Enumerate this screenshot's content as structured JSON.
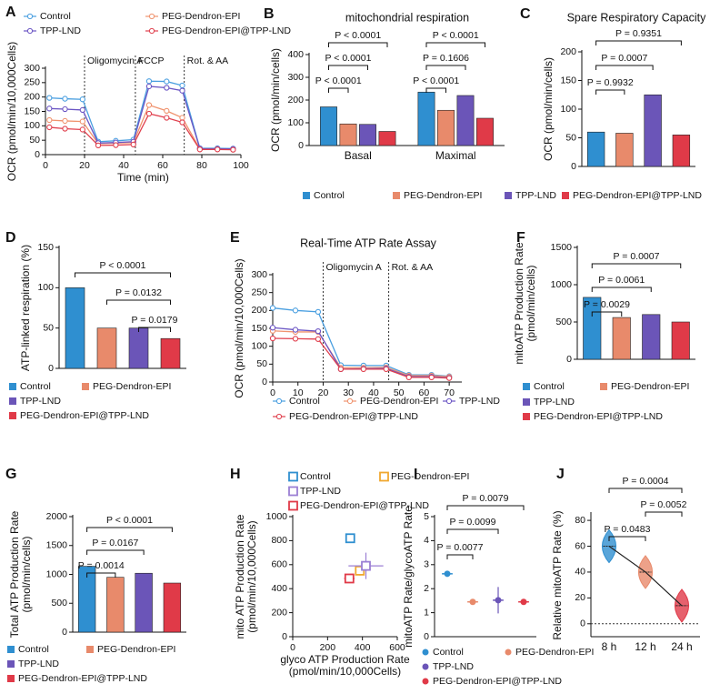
{
  "chart_data": [
    {
      "panel": "A",
      "type": "line",
      "xlabel": "Time (min)",
      "ylabel": "OCR (pmol/min/10,000Cells)",
      "x": [
        2,
        10,
        19,
        27,
        36,
        45,
        53,
        62,
        70,
        79,
        88,
        96
      ],
      "series": [
        {
          "name": "Control",
          "color": "#4a9fe0",
          "values": [
            197,
            194,
            192,
            45,
            48,
            52,
            255,
            254,
            240,
            22,
            22,
            21
          ]
        },
        {
          "name": "PEG-Dendron-EPI",
          "color": "#f0936e",
          "values": [
            120,
            117,
            115,
            38,
            40,
            42,
            172,
            152,
            128,
            20,
            20,
            19
          ]
        },
        {
          "name": "TPP-LND",
          "color": "#6b55c4",
          "values": [
            160,
            158,
            155,
            40,
            42,
            45,
            237,
            232,
            222,
            21,
            20,
            20
          ]
        },
        {
          "name": "PEG-Dendron-EPI@TPP-LND",
          "color": "#e0404e",
          "values": [
            95,
            90,
            87,
            32,
            33,
            35,
            142,
            128,
            112,
            18,
            18,
            17
          ]
        }
      ],
      "xlim": [
        0,
        100
      ],
      "xticks": [
        0,
        20,
        40,
        60,
        80,
        100
      ],
      "ylim": [
        0,
        300
      ],
      "yticks": [
        0,
        50,
        100,
        150,
        200,
        250,
        300
      ],
      "vlines": [
        {
          "x": 20,
          "label": "Oligomycin A"
        },
        {
          "x": 46,
          "label": "FCCP"
        },
        {
          "x": 71,
          "label": "Rot. & AA"
        }
      ],
      "legend": "top"
    },
    {
      "panel": "B",
      "type": "bar",
      "title": "mitochondrial respiration",
      "ylabel": "OCR (pmol/min/cells)",
      "categories": [
        "Basal",
        "Maximal"
      ],
      "series": [
        {
          "name": "Control",
          "color": "#2f8fd0",
          "values": [
            170,
            235
          ]
        },
        {
          "name": "PEG-Dendron-EPI",
          "color": "#e88a6b",
          "values": [
            95,
            155
          ]
        },
        {
          "name": "TPP-LND",
          "color": "#6b55b8",
          "values": [
            93,
            220
          ]
        },
        {
          "name": "PEG-Dendron-EPI@TPP-LND",
          "color": "#e03a48",
          "values": [
            62,
            120
          ]
        }
      ],
      "ylim": [
        0,
        400
      ],
      "yticks": [
        0,
        100,
        200,
        300,
        400
      ],
      "annotations": [
        "P < 0.0001",
        "P < 0.0001",
        "P < 0.0001",
        "P < 0.0001",
        "P = 0.1606",
        "P < 0.0001"
      ],
      "legend": "bottom"
    },
    {
      "panel": "C",
      "type": "bar",
      "title": "Spare Respiratory Capacity",
      "ylabel": "OCR (pmol/min/cells)",
      "values": [
        60,
        58,
        125,
        55
      ],
      "colors": [
        "#2f8fd0",
        "#e88a6b",
        "#6b55b8",
        "#e03a48"
      ],
      "ylim": [
        0,
        200
      ],
      "yticks": [
        0,
        50,
        100,
        150,
        200
      ],
      "annotations": [
        "P = 0.9351",
        "P = 0.0007",
        "P = 0.9932"
      ]
    },
    {
      "panel": "D",
      "type": "bar",
      "ylabel": "ATP-linked respiration (%)",
      "series": [
        {
          "name": "Control",
          "color": "#2f8fd0",
          "values": [
            100
          ]
        },
        {
          "name": "PEG-Dendron-EPI",
          "color": "#e88a6b",
          "values": [
            50
          ]
        },
        {
          "name": "TPP-LND",
          "color": "#6b55b8",
          "values": [
            50
          ]
        },
        {
          "name": "PEG-Dendron-EPI@TPP-LND",
          "color": "#e03a48",
          "values": [
            37
          ]
        }
      ],
      "ylim": [
        0,
        150
      ],
      "yticks": [
        0,
        50,
        100,
        150
      ],
      "annotations": [
        "P < 0.0001",
        "P = 0.0132",
        "P = 0.0179"
      ],
      "legend": "bottom"
    },
    {
      "panel": "E",
      "type": "line",
      "title": "Real-Time ATP Rate Assay",
      "ylabel": "OCR (pmol/min/10,000Cells)",
      "x": [
        0,
        9,
        18,
        27,
        36,
        45,
        54,
        63,
        70
      ],
      "series": [
        {
          "name": "Control",
          "color": "#4a9fe0",
          "values": [
            207,
            200,
            196,
            47,
            46,
            46,
            20,
            20,
            16
          ]
        },
        {
          "name": "PEG-Dendron-EPI",
          "color": "#f0936e",
          "values": [
            143,
            140,
            140,
            40,
            40,
            41,
            18,
            18,
            15
          ]
        },
        {
          "name": "TPP-LND",
          "color": "#6b55c4",
          "values": [
            152,
            146,
            142,
            36,
            37,
            38,
            15,
            15,
            12
          ]
        },
        {
          "name": "PEG-Dendron-EPI@TPP-LND",
          "color": "#e0404e",
          "values": [
            122,
            121,
            120,
            36,
            36,
            36,
            13,
            13,
            11
          ]
        }
      ],
      "xlim": [
        0,
        75
      ],
      "xticks": [
        0,
        10,
        20,
        30,
        40,
        50,
        60,
        70
      ],
      "ylim": [
        0,
        300
      ],
      "yticks": [
        0,
        50,
        100,
        150,
        200,
        250,
        300
      ],
      "vlines": [
        {
          "x": 20,
          "label": "Oligomycin A"
        },
        {
          "x": 46,
          "label": "Rot. & AA"
        }
      ],
      "legend": "bottom"
    },
    {
      "panel": "F",
      "type": "bar",
      "ylabel": [
        "mitoATP Production Rate",
        "(pmol/min/cells)"
      ],
      "series": [
        {
          "name": "Control",
          "color": "#2f8fd0",
          "values": [
            830
          ]
        },
        {
          "name": "PEG-Dendron-EPI",
          "color": "#e88a6b",
          "values": [
            560
          ]
        },
        {
          "name": "TPP-LND",
          "color": "#6b55b8",
          "values": [
            600
          ]
        },
        {
          "name": "PEG-Dendron-EPI@TPP-LND",
          "color": "#e03a48",
          "values": [
            500
          ]
        }
      ],
      "ylim": [
        0,
        1500
      ],
      "yticks": [
        0,
        500,
        1000,
        1500
      ],
      "annotations": [
        "P = 0.0007",
        "P = 0.0061",
        "P = 0.0029"
      ],
      "legend": "bottom"
    },
    {
      "panel": "G",
      "type": "bar",
      "ylabel": [
        "Total ATP Production Rate",
        "(pmol/min/cells)"
      ],
      "series": [
        {
          "name": "Control",
          "color": "#2f8fd0",
          "values": [
            1140
          ]
        },
        {
          "name": "PEG-Dendron-EPI",
          "color": "#e88a6b",
          "values": [
            950
          ]
        },
        {
          "name": "TPP-LND",
          "color": "#6b55b8",
          "values": [
            1020
          ]
        },
        {
          "name": "PEG-Dendron-EPI@TPP-LND",
          "color": "#e03a48",
          "values": [
            850
          ]
        }
      ],
      "ylim": [
        0,
        2000
      ],
      "yticks": [
        0,
        500,
        1000,
        1500,
        2000
      ],
      "annotations": [
        "P < 0.0001",
        "P = 0.0167",
        "P = 0.0014"
      ],
      "legend": "bottom"
    },
    {
      "panel": "H",
      "type": "scatter",
      "xlabel": [
        "glyco ATP Production Rate",
        "(pmol/min/10,000Cells)"
      ],
      "ylabel": [
        "mito ATP Production Rate",
        "(pmol/min/10,000Cells)"
      ],
      "series": [
        {
          "name": "Control",
          "color": "#2f8fd0",
          "x": [
            330
          ],
          "values": [
            820
          ],
          "xerr": [
            15
          ],
          "yerr": [
            35
          ]
        },
        {
          "name": "PEG-Dendron-EPI",
          "color": "#f0a830",
          "x": [
            385
          ],
          "values": [
            550
          ],
          "xerr": [
            25
          ],
          "yerr": [
            40
          ]
        },
        {
          "name": "TPP-LND",
          "color": "#9b7fd4",
          "x": [
            420
          ],
          "values": [
            590
          ],
          "xerr": [
            100
          ],
          "yerr": [
            110
          ]
        },
        {
          "name": "PEG-Dendron-EPI@TPP-LND",
          "color": "#e03a48",
          "x": [
            325
          ],
          "values": [
            485
          ],
          "xerr": [
            30
          ],
          "yerr": [
            25
          ]
        }
      ],
      "xlim": [
        0,
        600
      ],
      "xticks": [
        0,
        200,
        400,
        600
      ],
      "ylim": [
        0,
        1000
      ],
      "yticks": [
        0,
        200,
        400,
        600,
        800,
        1000
      ],
      "legend": "top"
    },
    {
      "panel": "I",
      "type": "dot",
      "ylabel": "mitoATP Rate/glycoATP Rate",
      "series": [
        {
          "name": "Control",
          "color": "#2f8fd0",
          "values": [
            2.62
          ],
          "errors": [
            0.12
          ]
        },
        {
          "name": "PEG-Dendron-EPI",
          "color": "#e88a6b",
          "values": [
            1.45
          ],
          "errors": [
            0.04
          ]
        },
        {
          "name": "TPP-LND",
          "color": "#6b55b8",
          "values": [
            1.52
          ],
          "errors": [
            0.55
          ]
        },
        {
          "name": "PEG-Dendron-EPI@TPP-LND",
          "color": "#e03a48",
          "values": [
            1.45
          ],
          "errors": [
            0.12
          ]
        }
      ],
      "ylim": [
        0,
        5
      ],
      "yticks": [
        0,
        1,
        2,
        3,
        4,
        5
      ],
      "annotations": [
        "P = 0.0079",
        "P = 0.0099",
        "P = 0.0077"
      ],
      "legend": "bottom"
    },
    {
      "panel": "J",
      "type": "violin",
      "ylabel": "Relative mitoATP Rate (%)",
      "categories": [
        "8 h",
        "12 h",
        "24 h"
      ],
      "values": [
        60,
        40,
        14
      ],
      "colors": [
        "#2f8fd0",
        "#e88a6b",
        "#e03a48"
      ],
      "ylim": [
        -10,
        85
      ],
      "yticks": [
        0,
        20,
        40,
        60,
        80
      ],
      "annotations": [
        "P = 0.0004",
        "P = 0.0052",
        "P = 0.0483"
      ]
    }
  ]
}
